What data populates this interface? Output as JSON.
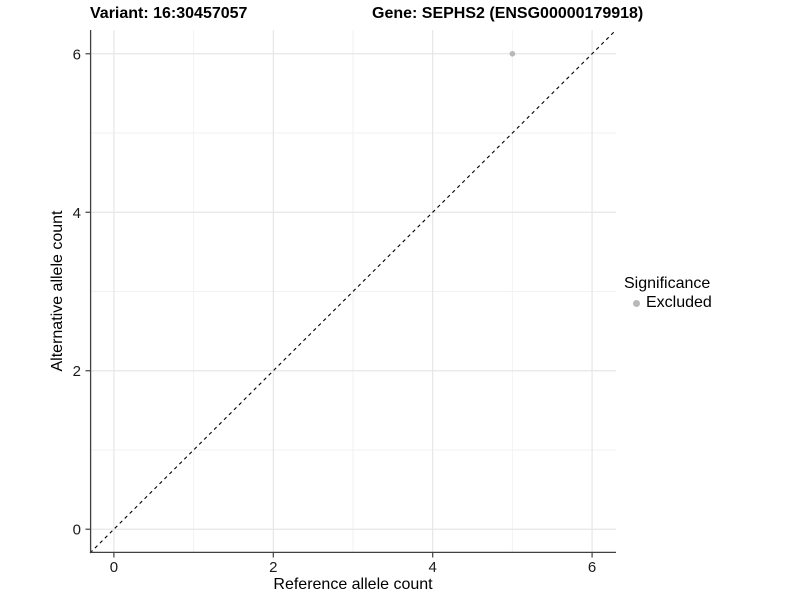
{
  "figure": {
    "titles": {
      "variant": "Variant: 16:30457057",
      "gene": "Gene: SEPHS2 (ENSG00000179918)"
    }
  },
  "axes": {
    "x": {
      "label": "Reference allele count",
      "ticks": [
        0,
        2,
        4,
        6
      ]
    },
    "y": {
      "label": "Alternative allele count",
      "ticks": [
        0,
        2,
        4,
        6
      ]
    }
  },
  "legend": {
    "title": "Significance",
    "items": [
      {
        "label": "Excluded",
        "color": "#b9b9b9"
      }
    ]
  },
  "chart_data": {
    "type": "scatter",
    "title_left": "Variant: 16:30457057",
    "title_right": "Gene: SEPHS2 (ENSG00000179918)",
    "xlabel": "Reference allele count",
    "ylabel": "Alternative allele count",
    "xlim": [
      -0.3,
      6.3
    ],
    "ylim": [
      -0.3,
      6.3
    ],
    "x_major_ticks": [
      0,
      2,
      4,
      6
    ],
    "y_major_ticks": [
      0,
      2,
      4,
      6
    ],
    "x_minor_ticks": [
      1,
      3,
      5
    ],
    "y_minor_ticks": [
      1,
      3,
      5
    ],
    "grid": true,
    "legend_position": "right",
    "series": [
      {
        "name": "Excluded",
        "color": "#b9b9b9",
        "points": [
          {
            "x": 5,
            "y": 6
          }
        ]
      }
    ],
    "reference_line": {
      "type": "identity",
      "slope": 1,
      "intercept": 0,
      "style": "dashed",
      "color": "#000000"
    }
  },
  "colors": {
    "background": "#ffffff",
    "grid_major": "#e6e6e6",
    "grid_minor": "#f2f2f2",
    "axis": "#404040",
    "tick_text": "#1a1a1a",
    "point": "#b9b9b9"
  }
}
